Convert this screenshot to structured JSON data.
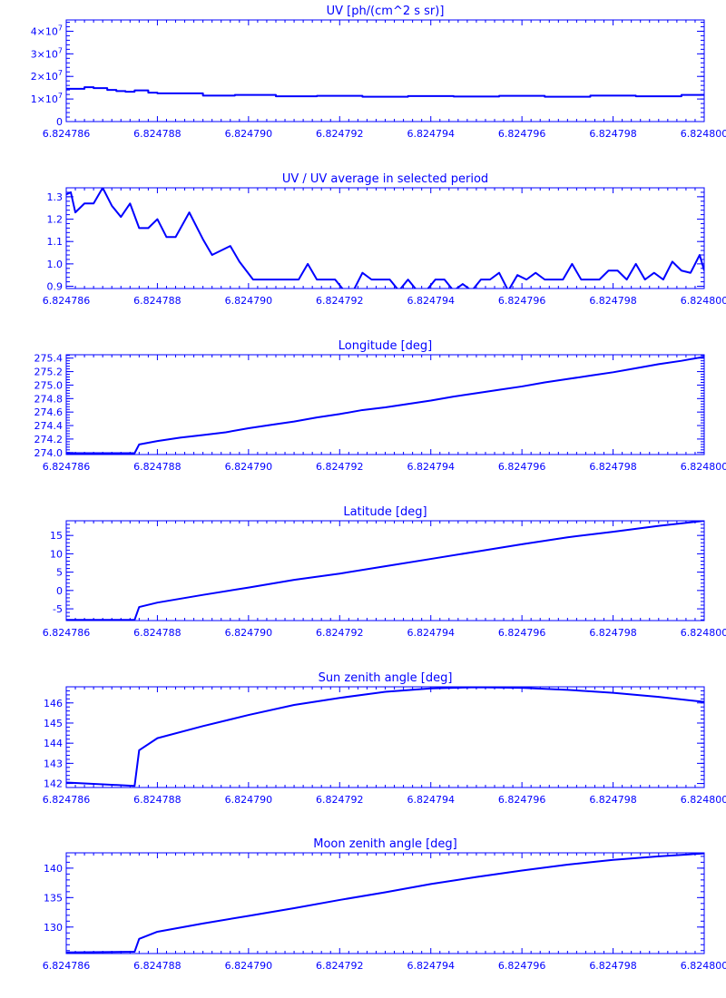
{
  "color": "#0000ff",
  "chart_data": [
    {
      "type": "line",
      "title": "UV [ph/(cm^2 s sr)]",
      "xlim": [
        6.824786,
        6.8248
      ],
      "ylim": [
        0,
        45000000
      ],
      "x_ticks": [
        "6.824786",
        "6.824788",
        "6.824790",
        "6.824792",
        "6.824794",
        "6.824796",
        "6.824798",
        "6.824800"
      ],
      "x_tick_values": [
        6.824786,
        6.824788,
        6.82479,
        6.824792,
        6.824794,
        6.824796,
        6.824798,
        6.8248
      ],
      "y_ticks": [
        {
          "value": 0,
          "mant": "0",
          "exp": ""
        },
        {
          "value": 10000000,
          "mant": "1×10",
          "exp": "7"
        },
        {
          "value": 20000000,
          "mant": "2×10",
          "exp": "7"
        },
        {
          "value": 30000000,
          "mant": "3×10",
          "exp": "7"
        },
        {
          "value": 40000000,
          "mant": "4×10",
          "exp": "7"
        }
      ],
      "step": true,
      "series": [
        {
          "x": [
            6.824786,
            6.8247864,
            6.8247866,
            6.8247869,
            6.8247871,
            6.8247873,
            6.8247875,
            6.8247878,
            6.824788,
            6.824789,
            6.8247897,
            6.8247906,
            6.8247915,
            6.8247925,
            6.8247935,
            6.8247945,
            6.8247955,
            6.8247965,
            6.8247975,
            6.8247985,
            6.8247995,
            6.8248
          ],
          "y": [
            14500000,
            15200000,
            14800000,
            14000000,
            13500000,
            13200000,
            13800000,
            12800000,
            12500000,
            11500000,
            11800000,
            11200000,
            11400000,
            11000000,
            11300000,
            11100000,
            11400000,
            11000000,
            11500000,
            11200000,
            11800000,
            11600000
          ]
        }
      ]
    },
    {
      "type": "line",
      "title": "UV / UV average in selected period",
      "xlim": [
        6.824786,
        6.8248
      ],
      "ylim": [
        0.89,
        1.34
      ],
      "x_ticks": [
        "6.824786",
        "6.824788",
        "6.824790",
        "6.824792",
        "6.824794",
        "6.824796",
        "6.824798",
        "6.824800"
      ],
      "x_tick_values": [
        6.824786,
        6.824788,
        6.82479,
        6.824792,
        6.824794,
        6.824796,
        6.824798,
        6.8248
      ],
      "y_ticks": [
        {
          "value": 0.9,
          "mant": "0.9",
          "exp": ""
        },
        {
          "value": 1.0,
          "mant": "1.0",
          "exp": ""
        },
        {
          "value": 1.1,
          "mant": "1.1",
          "exp": ""
        },
        {
          "value": 1.2,
          "mant": "1.2",
          "exp": ""
        },
        {
          "value": 1.3,
          "mant": "1.3",
          "exp": ""
        }
      ],
      "series": [
        {
          "x": [
            6.824786,
            6.8247861,
            6.8247862,
            6.8247864,
            6.8247866,
            6.8247868,
            6.824787,
            6.8247872,
            6.8247874,
            6.8247876,
            6.8247878,
            6.824788,
            6.8247882,
            6.8247884,
            6.8247887,
            6.824789,
            6.8247892,
            6.8247896,
            6.8247898,
            6.8247901,
            6.8247903,
            6.8247905,
            6.8247909,
            6.8247911,
            6.8247913,
            6.8247915,
            6.8247917,
            6.8247919,
            6.8247921,
            6.8247923,
            6.8247925,
            6.8247927,
            6.8247929,
            6.8247931,
            6.8247933,
            6.8247935,
            6.8247937,
            6.8247939,
            6.8247941,
            6.8247943,
            6.8247945,
            6.8247947,
            6.8247949,
            6.8247951,
            6.8247953,
            6.8247955,
            6.8247957,
            6.8247959,
            6.8247961,
            6.8247963,
            6.8247965,
            6.8247967,
            6.8247969,
            6.8247971,
            6.8247973,
            6.8247975,
            6.8247977,
            6.8247979,
            6.8247981,
            6.8247983,
            6.8247985,
            6.8247987,
            6.8247989,
            6.8247991,
            6.8247993,
            6.8247995,
            6.8247997,
            6.8247999,
            6.8248
          ],
          "y": [
            1.31,
            1.32,
            1.23,
            1.27,
            1.27,
            1.34,
            1.26,
            1.21,
            1.27,
            1.16,
            1.16,
            1.2,
            1.12,
            1.12,
            1.23,
            1.11,
            1.04,
            1.08,
            1.01,
            0.93,
            0.93,
            0.93,
            0.93,
            0.93,
            1.0,
            0.93,
            0.93,
            0.93,
            0.88,
            0.88,
            0.96,
            0.93,
            0.93,
            0.93,
            0.88,
            0.93,
            0.88,
            0.88,
            0.93,
            0.93,
            0.88,
            0.91,
            0.88,
            0.93,
            0.93,
            0.96,
            0.88,
            0.95,
            0.93,
            0.96,
            0.93,
            0.93,
            0.93,
            1.0,
            0.93,
            0.93,
            0.93,
            0.97,
            0.97,
            0.93,
            1.0,
            0.93,
            0.96,
            0.93,
            1.01,
            0.97,
            0.96,
            1.04,
            0.97
          ]
        }
      ]
    },
    {
      "type": "line",
      "title": "Longitude [deg]",
      "xlim": [
        6.824786,
        6.8248
      ],
      "ylim": [
        273.97,
        275.45
      ],
      "x_ticks": [
        "6.824786",
        "6.824788",
        "6.824790",
        "6.824792",
        "6.824794",
        "6.824796",
        "6.824798",
        "6.824800"
      ],
      "x_tick_values": [
        6.824786,
        6.824788,
        6.82479,
        6.824792,
        6.824794,
        6.824796,
        6.824798,
        6.8248
      ],
      "y_ticks": [
        {
          "value": 274.0,
          "mant": "274.0",
          "exp": ""
        },
        {
          "value": 274.2,
          "mant": "274.2",
          "exp": ""
        },
        {
          "value": 274.4,
          "mant": "274.4",
          "exp": ""
        },
        {
          "value": 274.6,
          "mant": "274.6",
          "exp": ""
        },
        {
          "value": 274.8,
          "mant": "274.8",
          "exp": ""
        },
        {
          "value": 275.0,
          "mant": "275.0",
          "exp": ""
        },
        {
          "value": 275.2,
          "mant": "275.2",
          "exp": ""
        },
        {
          "value": 275.4,
          "mant": "275.4",
          "exp": ""
        }
      ],
      "series": [
        {
          "x": [
            6.824786,
            6.8247875,
            6.8247876,
            6.824788,
            6.8247885,
            6.824789,
            6.8247895,
            6.82479,
            6.8247905,
            6.824791,
            6.8247915,
            6.824792,
            6.8247925,
            6.824793,
            6.8247935,
            6.824794,
            6.8247945,
            6.824795,
            6.8247955,
            6.824796,
            6.8247965,
            6.824797,
            6.8247975,
            6.824798,
            6.8247985,
            6.824799,
            6.8247995,
            6.8248
          ],
          "y": [
            273.99,
            273.99,
            274.12,
            274.17,
            274.22,
            274.26,
            274.3,
            274.36,
            274.41,
            274.46,
            274.52,
            274.57,
            274.63,
            274.67,
            274.72,
            274.77,
            274.83,
            274.88,
            274.93,
            274.98,
            275.04,
            275.09,
            275.14,
            275.19,
            275.25,
            275.31,
            275.36,
            275.42
          ]
        }
      ]
    },
    {
      "type": "line",
      "title": "Latitude [deg]",
      "xlim": [
        6.824786,
        6.8248
      ],
      "ylim": [
        -8.2,
        19
      ],
      "x_ticks": [
        "6.824786",
        "6.824788",
        "6.824790",
        "6.824792",
        "6.824794",
        "6.824796",
        "6.824798",
        "6.824800"
      ],
      "x_tick_values": [
        6.824786,
        6.824788,
        6.82479,
        6.824792,
        6.824794,
        6.824796,
        6.824798,
        6.8248
      ],
      "y_ticks": [
        {
          "value": -5,
          "mant": "-5",
          "exp": ""
        },
        {
          "value": 0,
          "mant": "0",
          "exp": ""
        },
        {
          "value": 5,
          "mant": "5",
          "exp": ""
        },
        {
          "value": 10,
          "mant": "10",
          "exp": ""
        },
        {
          "value": 15,
          "mant": "15",
          "exp": ""
        }
      ],
      "series": [
        {
          "x": [
            6.824786,
            6.8247875,
            6.8247876,
            6.824788,
            6.824789,
            6.82479,
            6.824791,
            6.824792,
            6.824793,
            6.824794,
            6.824795,
            6.824796,
            6.824797,
            6.824798,
            6.824799,
            6.8248
          ],
          "y": [
            -8.0,
            -8.0,
            -4.5,
            -3.3,
            -1.2,
            0.8,
            2.9,
            4.6,
            6.6,
            8.6,
            10.6,
            12.6,
            14.5,
            16.0,
            17.6,
            19.0
          ]
        }
      ]
    },
    {
      "type": "line",
      "title": "Sun zenith angle [deg]",
      "xlim": [
        6.824786,
        6.8248
      ],
      "ylim": [
        141.8,
        146.8
      ],
      "x_ticks": [
        "6.824786",
        "6.824788",
        "6.824790",
        "6.824792",
        "6.824794",
        "6.824796",
        "6.824798",
        "6.824800"
      ],
      "x_tick_values": [
        6.824786,
        6.824788,
        6.82479,
        6.824792,
        6.824794,
        6.824796,
        6.824798,
        6.8248
      ],
      "y_ticks": [
        {
          "value": 142,
          "mant": "142",
          "exp": ""
        },
        {
          "value": 143,
          "mant": "143",
          "exp": ""
        },
        {
          "value": 144,
          "mant": "144",
          "exp": ""
        },
        {
          "value": 145,
          "mant": "145",
          "exp": ""
        },
        {
          "value": 146,
          "mant": "146",
          "exp": ""
        }
      ],
      "series": [
        {
          "x": [
            6.824786,
            6.8247875,
            6.8247876,
            6.824788,
            6.824789,
            6.82479,
            6.824791,
            6.824792,
            6.824793,
            6.824794,
            6.824795,
            6.824796,
            6.824797,
            6.824798,
            6.824799,
            6.8248
          ],
          "y": [
            142.05,
            141.88,
            143.65,
            144.25,
            144.85,
            145.4,
            145.9,
            146.25,
            146.55,
            146.72,
            146.78,
            146.75,
            146.65,
            146.5,
            146.3,
            146.05
          ]
        }
      ]
    },
    {
      "type": "line",
      "title": "Moon zenith angle [deg]",
      "xlim": [
        6.824786,
        6.8248
      ],
      "ylim": [
        125.5,
        142.6
      ],
      "x_ticks": [
        "6.824786",
        "6.824788",
        "6.824790",
        "6.824792",
        "6.824794",
        "6.824796",
        "6.824798",
        "6.824800"
      ],
      "x_tick_values": [
        6.824786,
        6.824788,
        6.82479,
        6.824792,
        6.824794,
        6.824796,
        6.824798,
        6.8248
      ],
      "y_ticks": [
        {
          "value": 130,
          "mant": "130",
          "exp": ""
        },
        {
          "value": 135,
          "mant": "135",
          "exp": ""
        },
        {
          "value": 140,
          "mant": "140",
          "exp": ""
        }
      ],
      "series": [
        {
          "x": [
            6.824786,
            6.8247875,
            6.8247876,
            6.824788,
            6.824789,
            6.82479,
            6.824791,
            6.824792,
            6.824793,
            6.824794,
            6.824795,
            6.824796,
            6.824797,
            6.824798,
            6.824799,
            6.8248
          ],
          "y": [
            125.7,
            125.8,
            128.0,
            129.2,
            130.6,
            131.9,
            133.2,
            134.6,
            135.9,
            137.3,
            138.5,
            139.6,
            140.6,
            141.4,
            142.0,
            142.5
          ]
        }
      ]
    }
  ]
}
